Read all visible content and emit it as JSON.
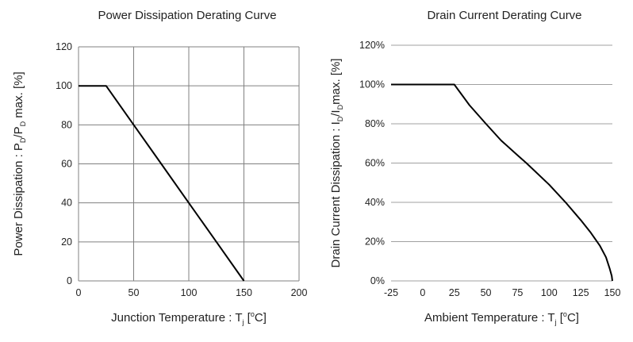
{
  "chart_data": [
    {
      "type": "line",
      "title": "Power Dissipation Derating Curve",
      "xlabel": "Junction Temperature : T",
      "xlabel_sub": "j",
      "xlabel_unit": " [",
      "xlabel_deg": "o",
      "xlabel_end": "C]",
      "ylabel_parts": [
        "Power Dissipation : P",
        "D",
        "/P",
        "D",
        " max. [%]"
      ],
      "xlim": [
        0,
        200
      ],
      "ylim": [
        0,
        120
      ],
      "xticks": [
        0,
        50,
        100,
        150,
        200
      ],
      "yticks": [
        0,
        20,
        40,
        60,
        80,
        100,
        120
      ],
      "ytick_labels": [
        "0",
        "20",
        "40",
        "60",
        "80",
        "100",
        "120"
      ],
      "grid": "both",
      "x": [
        0,
        25,
        50,
        75,
        100,
        125,
        150
      ],
      "y": [
        100,
        100,
        80,
        60,
        40,
        20,
        0
      ],
      "line_color": "#000000",
      "grid_color": "#808080"
    },
    {
      "type": "line",
      "title": "Drain Current Derating Curve",
      "xlabel": "Ambient Temperature : T",
      "xlabel_sub": "j",
      "xlabel_unit": " [",
      "xlabel_deg": "o",
      "xlabel_end": "C]",
      "ylabel_parts": [
        "Drain Current Dissipation : I",
        "D",
        "/I",
        "D",
        "max. [%]"
      ],
      "xlim": [
        -25,
        150
      ],
      "ylim": [
        0,
        120
      ],
      "xticks": [
        -25,
        0,
        25,
        50,
        75,
        100,
        125,
        150
      ],
      "yticks": [
        0,
        20,
        40,
        60,
        80,
        100,
        120
      ],
      "ytick_labels": [
        "0%",
        "20%",
        "40%",
        "60%",
        "80%",
        "100%",
        "120%"
      ],
      "grid": "horizontal",
      "x": [
        -25,
        25,
        37,
        50,
        62,
        75,
        82,
        100,
        113,
        125,
        133,
        140,
        145,
        148,
        149.5,
        150
      ],
      "y": [
        100,
        100,
        89.5,
        80,
        71.5,
        64,
        60,
        49,
        40,
        31,
        24.5,
        18,
        12,
        6,
        2.5,
        0
      ],
      "line_color": "#000000",
      "grid_color": "#a0a0a0"
    }
  ]
}
